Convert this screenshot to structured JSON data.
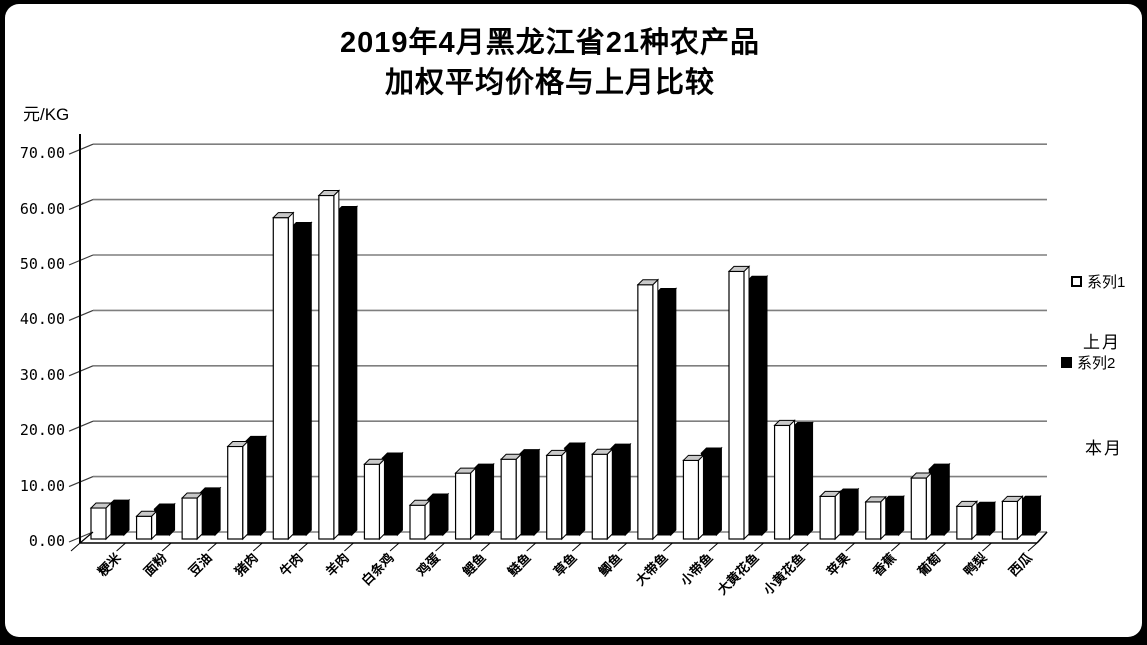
{
  "page": {
    "frame_color": "#000000",
    "background": "#ffffff"
  },
  "title": {
    "line1": "2019年4月黑龙江省21种农产品",
    "line2": "加权平均价格与上月比较"
  },
  "y_axis": {
    "unit_label": "元/KG",
    "tick_labels": [
      "70.00",
      "60.00",
      "50.00",
      "40.00",
      "30.00",
      "20.00",
      "10.00",
      "0.00"
    ]
  },
  "legend": {
    "series1": {
      "label": "系列1",
      "swatch_color": "#ffffff",
      "caption": "上月"
    },
    "series2": {
      "label": "系列2",
      "swatch_color": "#000000",
      "caption": "本月"
    }
  },
  "chart_data": {
    "type": "bar",
    "style": "3d-clustered-column",
    "title": "2019年4月黑龙江省21种农产品 加权平均价格与上月比较",
    "ylabel": "元/KG",
    "ylim": [
      0,
      70
    ],
    "ytick_step": 10,
    "grid": true,
    "legend_position": "right",
    "categories": [
      "粳米",
      "面粉",
      "豆油",
      "猪肉",
      "牛肉",
      "羊肉",
      "白条鸡",
      "鸡蛋",
      "鲤鱼",
      "鲢鱼",
      "草鱼",
      "鲫鱼",
      "大带鱼",
      "小带鱼",
      "大黄花鱼",
      "小黄花鱼",
      "苹果",
      "香蕉",
      "葡萄",
      "鸭梨",
      "西瓜"
    ],
    "series": [
      {
        "name": "系列1",
        "meaning": "上月",
        "fill": "#ffffff",
        "values": [
          5.6,
          4.1,
          7.4,
          16.7,
          58.0,
          62.0,
          13.5,
          6.1,
          11.9,
          14.4,
          15.1,
          15.3,
          45.9,
          14.2,
          48.3,
          20.5,
          7.7,
          6.7,
          11.0,
          5.9,
          6.8
        ]
      },
      {
        "name": "系列2",
        "meaning": "本月",
        "fill": "#000000",
        "values": [
          5.4,
          4.7,
          7.6,
          16.9,
          55.5,
          58.4,
          13.9,
          6.5,
          11.9,
          14.5,
          15.7,
          15.5,
          43.6,
          14.8,
          45.8,
          19.4,
          7.4,
          6.1,
          11.9,
          5.0,
          6.1
        ]
      }
    ]
  }
}
